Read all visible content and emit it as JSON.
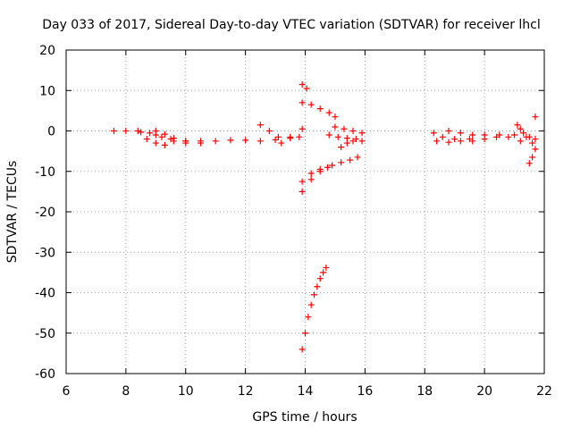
{
  "chart_data": {
    "type": "scatter",
    "title": "Day 033 of 2017, Sidereal Day-to-day VTEC variation (SDTVAR) for receiver lhcl",
    "xlabel": "GPS time / hours",
    "ylabel": "SDTVAR / TECUs",
    "xlim": [
      6,
      22
    ],
    "ylim": [
      -60,
      20
    ],
    "xticks": [
      6,
      8,
      10,
      12,
      14,
      16,
      18,
      20,
      22
    ],
    "yticks": [
      -60,
      -50,
      -40,
      -30,
      -20,
      -10,
      0,
      10,
      20
    ],
    "grid": true,
    "marker": "+",
    "color": "#ff0000",
    "segments": [
      {
        "x": [
          7.6,
          8.0,
          8.5,
          9.0,
          9.5,
          10.0,
          10.5,
          11.0,
          11.5,
          12.0,
          12.5,
          13.0,
          13.5,
          13.8
        ],
        "y": [
          0.0,
          0.0,
          -0.3,
          -1.0,
          -2.0,
          -2.5,
          -2.5,
          -2.5,
          -2.3,
          -2.3,
          -2.5,
          -2.2,
          -1.8,
          -1.5
        ]
      },
      {
        "x": [
          8.4,
          8.8,
          9.2,
          9.6,
          10.0,
          10.5
        ],
        "y": [
          0.0,
          -0.5,
          -1.5,
          -2.5,
          -3.0,
          -3.0
        ]
      },
      {
        "x": [
          9.0,
          9.3,
          9.6,
          10.0
        ],
        "y": [
          0.0,
          -0.8,
          -1.8,
          -2.5
        ]
      },
      {
        "x": [
          8.7,
          9.0,
          9.3
        ],
        "y": [
          -2.0,
          -3.0,
          -3.5
        ]
      },
      {
        "x": [
          12.5,
          12.8,
          13.1
        ],
        "y": [
          1.5,
          0.0,
          -1.5
        ]
      },
      {
        "x": [
          13.2,
          13.5,
          13.9
        ],
        "y": [
          -3.0,
          -1.5,
          0.5
        ]
      },
      {
        "x": [
          13.9,
          14.05
        ],
        "y": [
          11.5,
          10.5
        ]
      },
      {
        "x": [
          13.9,
          14.2,
          14.5,
          14.8,
          15.0
        ],
        "y": [
          7.0,
          6.5,
          5.5,
          4.5,
          3.5
        ]
      },
      {
        "x": [
          15.0,
          15.3,
          15.6,
          15.9
        ],
        "y": [
          1.0,
          0.5,
          0.0,
          -0.5
        ]
      },
      {
        "x": [
          14.8,
          15.1,
          15.4,
          15.7,
          15.9
        ],
        "y": [
          -1.0,
          -1.5,
          -1.8,
          -2.0,
          -2.5
        ]
      },
      {
        "x": [
          15.2,
          15.4,
          15.6
        ],
        "y": [
          -4.0,
          -3.0,
          -2.5
        ]
      },
      {
        "x": [
          13.9,
          14.2,
          14.5,
          14.9,
          15.2,
          15.5,
          15.75
        ],
        "y": [
          -12.5,
          -10.5,
          -9.5,
          -8.5,
          -7.8,
          -7.2,
          -6.5
        ]
      },
      {
        "x": [
          13.9,
          14.2,
          14.5,
          14.75
        ],
        "y": [
          -15.0,
          -12.0,
          -10.0,
          -9.0
        ]
      },
      {
        "x": [
          13.9,
          14.0,
          14.1,
          14.2,
          14.3,
          14.4,
          14.5,
          14.6,
          14.7
        ],
        "y": [
          -54.0,
          -50.0,
          -46.0,
          -43.0,
          -40.5,
          -38.5,
          -36.5,
          -35.0,
          -33.8
        ]
      },
      {
        "x": [
          18.3,
          18.6,
          19.0,
          19.5,
          20.0,
          20.5,
          21.0,
          21.5,
          21.7
        ],
        "y": [
          -0.5,
          -1.5,
          -2.0,
          -2.0,
          -1.0,
          -1.0,
          -1.0,
          -1.5,
          -2.0
        ]
      },
      {
        "x": [
          18.4,
          18.8,
          19.2,
          19.6,
          20.0,
          20.4,
          20.8,
          21.2,
          21.6
        ],
        "y": [
          -2.5,
          -2.8,
          -2.5,
          -2.5,
          -2.0,
          -1.5,
          -1.5,
          -2.5,
          -3.0
        ]
      },
      {
        "x": [
          18.8,
          19.2,
          19.6
        ],
        "y": [
          0.0,
          -0.5,
          -1.0
        ]
      },
      {
        "x": [
          21.1,
          21.2,
          21.3,
          21.4
        ],
        "y": [
          1.5,
          0.5,
          -0.5,
          -1.5
        ]
      },
      {
        "x": [
          21.5,
          21.6,
          21.7
        ],
        "y": [
          -8.0,
          -6.5,
          -4.5
        ]
      },
      {
        "x": [
          21.7
        ],
        "y": [
          3.5
        ]
      }
    ]
  }
}
